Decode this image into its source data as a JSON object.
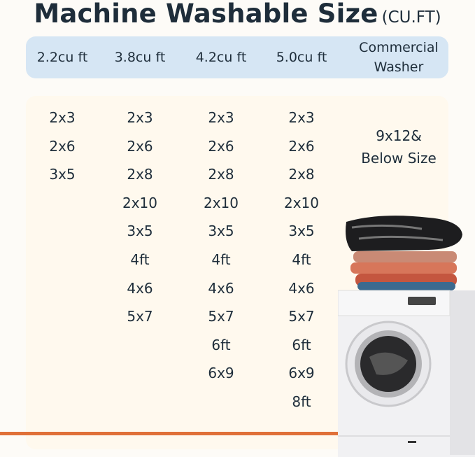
{
  "title": {
    "main": "Machine Washable Size",
    "unit": "(CU.FT)"
  },
  "columns": [
    {
      "header": "2.2cu ft",
      "sizes": [
        "2x3",
        "2x6",
        "3x5"
      ]
    },
    {
      "header": "3.8cu ft",
      "sizes": [
        "2x3",
        "2x6",
        "2x8",
        "2x10",
        "3x5",
        "4ft",
        "4x6",
        "5x7"
      ]
    },
    {
      "header": "4.2cu ft",
      "sizes": [
        "2x3",
        "2x6",
        "2x8",
        "2x10",
        "3x5",
        "4ft",
        "4x6",
        "5x7",
        "6ft",
        "6x9"
      ]
    },
    {
      "header": "5.0cu ft",
      "sizes": [
        "2x3",
        "2x6",
        "2x8",
        "2x10",
        "3x5",
        "4ft",
        "4x6",
        "5x7",
        "6ft",
        "6x9",
        "8ft"
      ]
    },
    {
      "header": "Commercial\nWasher",
      "sizes": [
        "9x12&\nBelow Size"
      ]
    }
  ],
  "colors": {
    "header_band": "#d6e6f4",
    "panel": "#fff9ee",
    "accent_line": "#e07038",
    "text": "#1e2d3a"
  },
  "image": "washing-machine-with-folded-rugs"
}
